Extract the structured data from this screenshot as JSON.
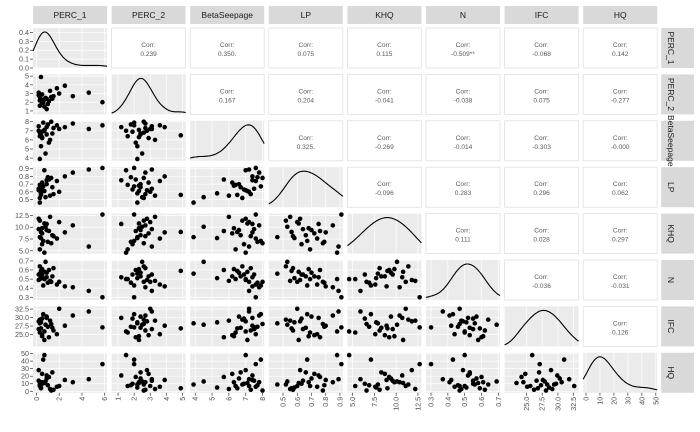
{
  "chart_data": {
    "type": "scatter-matrix",
    "variables": [
      "PERC_1",
      "PERC_2",
      "BetaSeepage",
      "LP",
      "KHQ",
      "N",
      "IFC",
      "HQ"
    ],
    "strip_labels": [
      "PERC_1",
      "PERC_2",
      "BetaSeepage",
      "LP",
      "KHQ",
      "N",
      "IFC",
      "HQ"
    ],
    "ranges": [
      [
        -0.3,
        6.2
      ],
      [
        0.6,
        5.2
      ],
      [
        3.7,
        8.1
      ],
      [
        0.4,
        0.92
      ],
      [
        4.4,
        12.9
      ],
      [
        0.27,
        0.71
      ],
      [
        21.5,
        33.3
      ],
      [
        -2,
        51
      ]
    ],
    "x_ticks": [
      [
        0,
        2,
        4,
        6
      ],
      [
        1,
        2,
        3,
        4,
        5
      ],
      [
        4,
        5,
        6,
        7,
        8
      ],
      [
        0.5,
        0.6,
        0.7,
        0.8,
        0.9
      ],
      [
        5.0,
        7.5,
        10.0,
        12.5
      ],
      [
        0.3,
        0.4,
        0.5,
        0.6,
        0.7
      ],
      [
        25.0,
        27.5,
        30.0,
        32.5
      ],
      [
        0,
        10,
        20,
        30,
        40,
        50
      ]
    ],
    "x_tick_labels": [
      [
        "0",
        "2",
        "4",
        "6"
      ],
      [
        "1",
        "2",
        "3",
        "4",
        "5"
      ],
      [
        "4",
        "5",
        "6",
        "7",
        "8"
      ],
      [
        "0.5",
        "0.6",
        "0.7",
        "0.8",
        "0.9"
      ],
      [
        "5.0",
        "7.5",
        "10.0",
        "12.5"
      ],
      [
        "0.3",
        "0.4",
        "0.5",
        "0.6",
        "0.7"
      ],
      [
        "25.0",
        "27.5",
        "30.0",
        "32.5"
      ],
      [
        "0",
        "10",
        "20",
        "30",
        "40",
        "50"
      ]
    ],
    "y_ticks": [
      [
        0.0,
        0.1,
        0.2,
        0.3,
        0.4
      ],
      [
        1,
        2,
        3,
        4,
        5
      ],
      [
        4,
        5,
        6,
        7,
        8
      ],
      [
        0.5,
        0.6,
        0.7,
        0.8,
        0.9
      ],
      [
        5.0,
        7.5,
        10.0,
        12.5
      ],
      [
        0.3,
        0.4,
        0.5,
        0.6,
        0.7
      ],
      [
        25.0,
        27.5,
        30.0,
        32.5
      ],
      [
        0,
        10,
        20,
        30,
        40,
        50
      ]
    ],
    "y_tick_labels": [
      [
        "0.0",
        "0.1",
        "0.2",
        "0.3",
        "0.4"
      ],
      [
        "1",
        "2",
        "3",
        "4",
        "5"
      ],
      [
        "4",
        "5",
        "6",
        "7",
        "8"
      ],
      [
        "0.5",
        "0.6",
        "0.7",
        "0.8",
        "0.9"
      ],
      [
        "5.0",
        "7.5",
        "10.0",
        "12.5"
      ],
      [
        "0.3",
        "0.4",
        "0.5",
        "0.6",
        "0.7"
      ],
      [
        "25.0",
        "27.5",
        "30.0",
        "32.5"
      ],
      [
        "0",
        "10",
        "20",
        "30",
        "40",
        "50"
      ]
    ],
    "density_ymax": 0.45,
    "corr_title": "Corr:",
    "correlations": [
      {
        "row": 0,
        "col": 1,
        "text": "0.239"
      },
      {
        "row": 0,
        "col": 2,
        "text": "0.350."
      },
      {
        "row": 0,
        "col": 3,
        "text": "0.075"
      },
      {
        "row": 0,
        "col": 4,
        "text": "0.115"
      },
      {
        "row": 0,
        "col": 5,
        "text": "-0.509**"
      },
      {
        "row": 0,
        "col": 6,
        "text": "-0.068"
      },
      {
        "row": 0,
        "col": 7,
        "text": "0.142"
      },
      {
        "row": 1,
        "col": 2,
        "text": "0.167"
      },
      {
        "row": 1,
        "col": 3,
        "text": "0.204"
      },
      {
        "row": 1,
        "col": 4,
        "text": "-0.041"
      },
      {
        "row": 1,
        "col": 5,
        "text": "-0.038"
      },
      {
        "row": 1,
        "col": 6,
        "text": "0.075"
      },
      {
        "row": 1,
        "col": 7,
        "text": "-0.277"
      },
      {
        "row": 2,
        "col": 3,
        "text": "0.325."
      },
      {
        "row": 2,
        "col": 4,
        "text": "-0.269"
      },
      {
        "row": 2,
        "col": 5,
        "text": "-0.014"
      },
      {
        "row": 2,
        "col": 6,
        "text": "-0.303"
      },
      {
        "row": 2,
        "col": 7,
        "text": "-0.000"
      },
      {
        "row": 3,
        "col": 4,
        "text": "-0.096"
      },
      {
        "row": 3,
        "col": 5,
        "text": "0.283"
      },
      {
        "row": 3,
        "col": 6,
        "text": "0.296"
      },
      {
        "row": 3,
        "col": 7,
        "text": "0.062"
      },
      {
        "row": 4,
        "col": 5,
        "text": "0.111"
      },
      {
        "row": 4,
        "col": 6,
        "text": "0.028"
      },
      {
        "row": 4,
        "col": 7,
        "text": "0.297"
      },
      {
        "row": 5,
        "col": 6,
        "text": "-0.036"
      },
      {
        "row": 5,
        "col": 7,
        "text": "-0.031"
      },
      {
        "row": 6,
        "col": 7,
        "text": "0.126"
      }
    ],
    "observations": [
      [
        0.2,
        3.1,
        7.5,
        0.64,
        9.6,
        0.55,
        26.6,
        14
      ],
      [
        0.3,
        2.6,
        6.8,
        0.52,
        11.4,
        0.64,
        29.4,
        9
      ],
      [
        0.5,
        2.9,
        6.2,
        0.72,
        8.7,
        0.53,
        24.8,
        23
      ],
      [
        0.4,
        2.2,
        5.3,
        0.58,
        7.7,
        0.51,
        28.6,
        5
      ],
      [
        0.7,
        2.3,
        7.1,
        0.61,
        10.8,
        0.58,
        23.4,
        11
      ],
      [
        0.9,
        2.4,
        6.6,
        0.7,
        9.4,
        0.57,
        30.3,
        17
      ],
      [
        1.0,
        1.8,
        7.7,
        0.79,
        6.9,
        0.46,
        27.3,
        8
      ],
      [
        1.2,
        3.3,
        6.0,
        0.55,
        12.2,
        0.48,
        29.1,
        3
      ],
      [
        0.6,
        2.0,
        7.9,
        0.67,
        7.1,
        0.43,
        31.0,
        42
      ],
      [
        0.3,
        1.6,
        6.4,
        0.69,
        5.3,
        0.5,
        25.6,
        7
      ],
      [
        0.8,
        2.5,
        4.5,
        0.53,
        10.1,
        0.69,
        27.9,
        13
      ],
      [
        1.5,
        2.7,
        7.3,
        0.57,
        8.1,
        0.62,
        26.2,
        2
      ],
      [
        1.1,
        2.1,
        5.7,
        0.76,
        9.2,
        0.6,
        24.2,
        19
      ],
      [
        0.2,
        2.8,
        7.0,
        0.62,
        11.8,
        0.49,
        28.9,
        28
      ],
      [
        0.5,
        1.9,
        6.9,
        0.63,
        6.4,
        0.55,
        29.7,
        10
      ],
      [
        1.8,
        3.6,
        7.6,
        0.74,
        7.6,
        0.44,
        25.1,
        6
      ],
      [
        2.5,
        3.9,
        7.4,
        0.8,
        8.9,
        0.42,
        27.6,
        15
      ],
      [
        3.2,
        2.7,
        7.8,
        0.85,
        10.4,
        0.41,
        30.6,
        12
      ],
      [
        4.6,
        3.1,
        7.2,
        0.89,
        5.9,
        0.37,
        31.8,
        16
      ],
      [
        5.8,
        2.0,
        7.6,
        0.91,
        12.7,
        0.3,
        27.1,
        36
      ],
      [
        0.4,
        4.9,
        6.5,
        0.56,
        9.0,
        0.59,
        26.8,
        4
      ],
      [
        0.9,
        1.2,
        7.4,
        0.75,
        10.7,
        0.52,
        29.9,
        21
      ],
      [
        0.3,
        2.2,
        3.9,
        0.46,
        7.9,
        0.56,
        28.3,
        9
      ],
      [
        1.4,
        2.4,
        6.7,
        0.66,
        8.3,
        0.53,
        27.0,
        25
      ],
      [
        0.7,
        1.5,
        7.0,
        0.88,
        4.6,
        0.5,
        25.9,
        48
      ],
      [
        2.0,
        3.0,
        7.2,
        0.6,
        11.1,
        0.47,
        32.6,
        7
      ],
      [
        0.5,
        2.3,
        6.3,
        0.68,
        9.8,
        0.61,
        24.5,
        12
      ],
      [
        1.3,
        2.6,
        8.0,
        0.78,
        6.6,
        0.47,
        28.1,
        1
      ]
    ]
  }
}
